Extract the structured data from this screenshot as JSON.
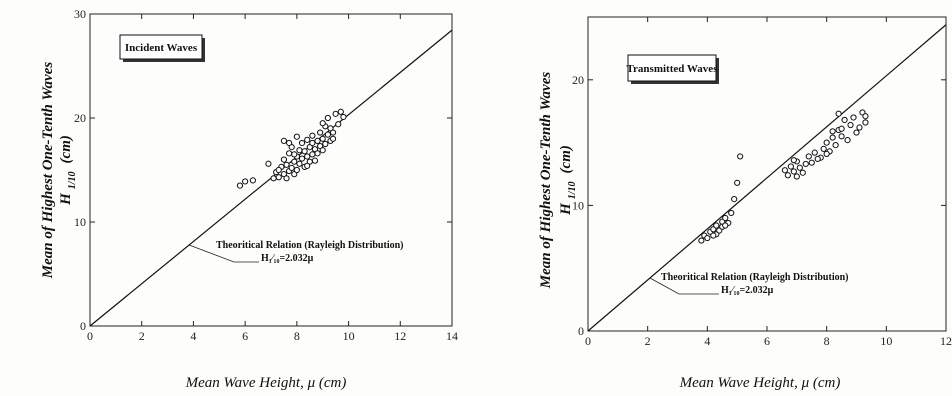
{
  "chart_data": [
    {
      "type": "scatter",
      "legend_box": "Incident Waves",
      "annotation": "Theoritical Relation (Rayleigh Distribution)",
      "formula": "H₁⁄₁₀=2.032μ",
      "ylabel_main": "Mean of Highest One-Tenth Waves",
      "ylabel_symbol": "H",
      "ylabel_sub": "1/10",
      "ylabel_unit": "(cm)",
      "xlabel": "Mean Wave Height,  μ  (cm)",
      "xlim": [
        0,
        14
      ],
      "ylim": [
        0,
        30
      ],
      "xticks": [
        "0",
        "2",
        "4",
        "6",
        "8",
        "10",
        "12",
        "14"
      ],
      "yticks": [
        "0",
        "10",
        "20",
        "30"
      ],
      "line_slope": 2.032,
      "points": [
        [
          5.8,
          13.5
        ],
        [
          6.0,
          13.9
        ],
        [
          6.3,
          14.0
        ],
        [
          6.9,
          15.6
        ],
        [
          7.1,
          14.2
        ],
        [
          7.2,
          14.8
        ],
        [
          7.3,
          14.3
        ],
        [
          7.4,
          15.3
        ],
        [
          7.5,
          14.6
        ],
        [
          7.5,
          16.0
        ],
        [
          7.6,
          14.2
        ],
        [
          7.6,
          15.5
        ],
        [
          7.7,
          14.9
        ],
        [
          7.7,
          16.6
        ],
        [
          7.8,
          15.2
        ],
        [
          7.8,
          17.2
        ],
        [
          7.9,
          15.8
        ],
        [
          7.9,
          14.6
        ],
        [
          8.0,
          16.3
        ],
        [
          8.0,
          15.0
        ],
        [
          8.1,
          16.9
        ],
        [
          8.1,
          15.6
        ],
        [
          8.2,
          17.6
        ],
        [
          8.2,
          16.1
        ],
        [
          8.3,
          15.3
        ],
        [
          8.3,
          16.8
        ],
        [
          8.4,
          17.9
        ],
        [
          8.4,
          16.3
        ],
        [
          8.5,
          15.8
        ],
        [
          8.5,
          17.2
        ],
        [
          8.6,
          16.5
        ],
        [
          8.6,
          18.3
        ],
        [
          8.7,
          17.0
        ],
        [
          8.7,
          15.9
        ],
        [
          8.8,
          17.8
        ],
        [
          8.8,
          16.6
        ],
        [
          8.9,
          18.6
        ],
        [
          8.9,
          17.3
        ],
        [
          9.0,
          16.9
        ],
        [
          9.0,
          18.0
        ],
        [
          9.1,
          19.2
        ],
        [
          9.1,
          17.5
        ],
        [
          9.2,
          18.4
        ],
        [
          9.2,
          20.0
        ],
        [
          9.3,
          17.8
        ],
        [
          9.3,
          19.0
        ],
        [
          9.4,
          18.6
        ],
        [
          9.5,
          20.4
        ],
        [
          9.6,
          19.4
        ],
        [
          9.7,
          20.6
        ],
        [
          9.8,
          20.1
        ],
        [
          7.5,
          17.8
        ],
        [
          7.7,
          17.6
        ],
        [
          8.0,
          18.2
        ],
        [
          7.3,
          15.0
        ],
        [
          7.9,
          16.5
        ],
        [
          8.6,
          17.6
        ],
        [
          9.0,
          19.5
        ],
        [
          8.4,
          15.4
        ],
        [
          9.4,
          18.0
        ]
      ]
    },
    {
      "type": "scatter",
      "legend_box": "Transmitted Waves",
      "annotation": "Theoritical Relation (Rayleigh Distribution)",
      "formula": "H₁⁄₁₀=2.032μ",
      "ylabel_main": "Mean of Highest One-Tenth Waves",
      "ylabel_symbol": "H",
      "ylabel_sub": "1/10",
      "ylabel_unit": "(cm)",
      "xlabel": "Mean Wave Height,  μ  (cm)",
      "xlim": [
        0,
        12
      ],
      "ylim": [
        0,
        25
      ],
      "xticks": [
        "0",
        "2",
        "4",
        "6",
        "8",
        "10",
        "12"
      ],
      "yticks": [
        "0",
        "10",
        "20"
      ],
      "line_slope": 2.032,
      "points": [
        [
          3.8,
          7.2
        ],
        [
          3.9,
          7.6
        ],
        [
          4.0,
          7.4
        ],
        [
          4.1,
          7.9
        ],
        [
          4.2,
          8.1
        ],
        [
          4.3,
          7.7
        ],
        [
          4.3,
          8.4
        ],
        [
          4.4,
          8.0
        ],
        [
          4.5,
          8.7
        ],
        [
          4.5,
          8.3
        ],
        [
          4.6,
          9.0
        ],
        [
          4.7,
          8.6
        ],
        [
          4.8,
          9.4
        ],
        [
          4.9,
          10.5
        ],
        [
          5.0,
          11.8
        ],
        [
          5.1,
          13.9
        ],
        [
          4.6,
          8.4
        ],
        [
          4.2,
          7.6
        ],
        [
          6.6,
          12.8
        ],
        [
          6.7,
          12.4
        ],
        [
          6.8,
          13.1
        ],
        [
          6.9,
          12.7
        ],
        [
          7.0,
          13.5
        ],
        [
          7.0,
          12.3
        ],
        [
          7.1,
          13.0
        ],
        [
          7.2,
          12.6
        ],
        [
          7.3,
          13.3
        ],
        [
          7.4,
          13.9
        ],
        [
          7.5,
          13.4
        ],
        [
          7.6,
          14.2
        ],
        [
          7.8,
          13.8
        ],
        [
          7.9,
          14.5
        ],
        [
          8.0,
          15.0
        ],
        [
          8.1,
          14.3
        ],
        [
          8.2,
          15.4
        ],
        [
          8.3,
          14.8
        ],
        [
          8.4,
          16.0
        ],
        [
          8.4,
          17.3
        ],
        [
          8.5,
          15.5
        ],
        [
          8.6,
          16.8
        ],
        [
          8.7,
          15.2
        ],
        [
          8.8,
          16.4
        ],
        [
          8.9,
          17.0
        ],
        [
          9.0,
          15.8
        ],
        [
          9.1,
          16.2
        ],
        [
          9.2,
          17.4
        ],
        [
          9.3,
          16.6
        ],
        [
          9.3,
          17.1
        ],
        [
          8.0,
          14.1
        ],
        [
          7.7,
          13.7
        ],
        [
          8.5,
          16.1
        ],
        [
          6.9,
          13.6
        ],
        [
          8.2,
          15.9
        ]
      ]
    }
  ]
}
